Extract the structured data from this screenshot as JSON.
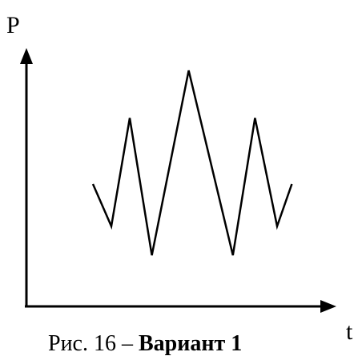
{
  "axes": {
    "y_label": "P",
    "x_label": "t"
  },
  "zigzag_points": [
    {
      "t": 1.0,
      "p": 5.0
    },
    {
      "t": 1.5,
      "p": 3.4
    },
    {
      "t": 2.0,
      "p": 7.5
    },
    {
      "t": 2.6,
      "p": 2.3
    },
    {
      "t": 3.6,
      "p": 9.3
    },
    {
      "t": 4.8,
      "p": 2.3
    },
    {
      "t": 5.4,
      "p": 7.5
    },
    {
      "t": 6.0,
      "p": 3.4
    },
    {
      "t": 6.4,
      "p": 5.0
    }
  ],
  "caption": {
    "prefix": "Рис. 16 – ",
    "bold": "Вариант 1"
  },
  "colors": {
    "ink": "#000000",
    "background": "#ffffff"
  }
}
